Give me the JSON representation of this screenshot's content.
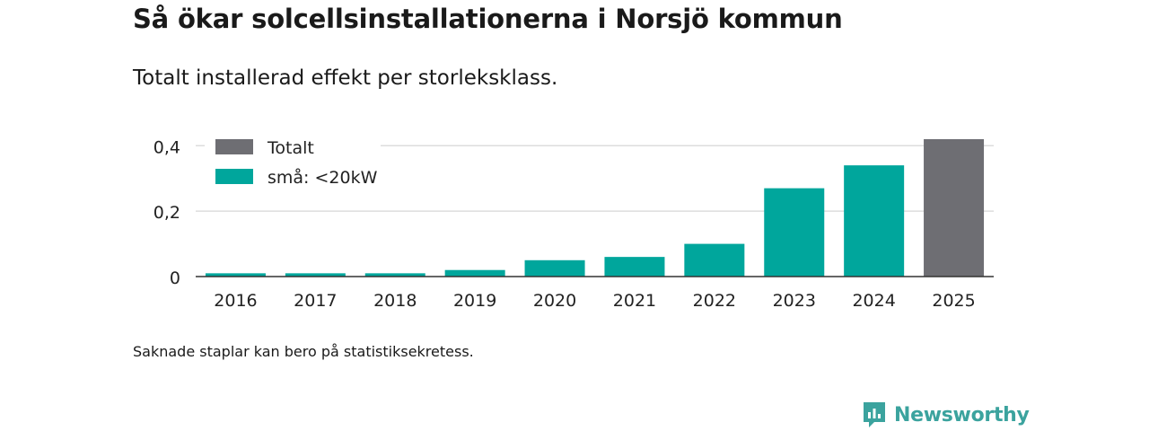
{
  "title": "Så ökar solcellsinstallationerna i Norsjö kommun",
  "subtitle": "Totalt installerad effekt per storleksklass.",
  "note": "Saknade staplar kan bero på statistiksekretess.",
  "brand": "Newsworthy",
  "colors": {
    "small": "#00a69c",
    "total": "#6e6e73",
    "grid": "#dddddd",
    "axis": "#333333",
    "brand": "#3ba39e"
  },
  "chart_data": {
    "type": "bar",
    "categories": [
      "2016",
      "2017",
      "2018",
      "2019",
      "2020",
      "2021",
      "2022",
      "2023",
      "2024",
      "2025"
    ],
    "series": [
      {
        "name": "små: <20kW",
        "values": [
          0.01,
          0.01,
          0.01,
          0.02,
          0.05,
          0.06,
          0.1,
          0.27,
          0.34,
          null
        ]
      },
      {
        "name": "Totalt",
        "values": [
          null,
          null,
          null,
          null,
          null,
          null,
          null,
          null,
          null,
          0.42
        ]
      }
    ],
    "y_ticks": [
      {
        "value": 0,
        "label": "0"
      },
      {
        "value": 0.2,
        "label": "0,2"
      },
      {
        "value": 0.4,
        "label": "0,4"
      }
    ],
    "ylim": [
      0,
      0.42
    ],
    "legend": [
      {
        "label": "Totalt",
        "series": "Totalt"
      },
      {
        "label": "små: <20kW",
        "series": "små: <20kW"
      }
    ],
    "legend_position": "top-left",
    "grid": true
  }
}
